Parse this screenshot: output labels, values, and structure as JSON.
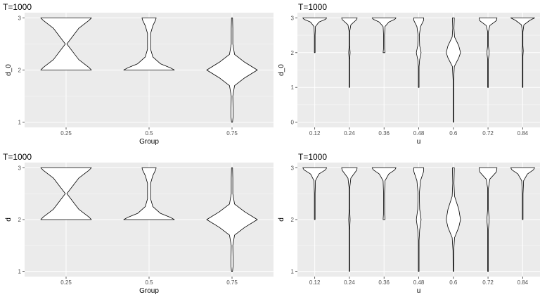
{
  "colors": {
    "panel_background": "#ebebeb",
    "grid_major": "#ffffff",
    "violin_fill": "#ffffff",
    "violin_stroke": "#000000",
    "tick_text": "#4d4d4d"
  },
  "chart_data": [
    {
      "type": "violin",
      "title": "T=1000",
      "xlabel": "Group",
      "ylabel": "d_0",
      "categories": [
        "0.25",
        "0.5",
        "0.75"
      ],
      "ylim": [
        0.9,
        3.1
      ],
      "yticks": [
        1,
        2,
        3
      ],
      "grid": true,
      "violins": [
        {
          "x": "0.25",
          "ymin": 2.0,
          "ymax": 3.0,
          "widths": [
            [
              2.0,
              1.0
            ],
            [
              2.05,
              0.9
            ],
            [
              2.2,
              0.5
            ],
            [
              2.5,
              0.03
            ],
            [
              2.8,
              0.5
            ],
            [
              2.95,
              0.9
            ],
            [
              3.0,
              1.0
            ]
          ]
        },
        {
          "x": "0.5",
          "ymin": 2.0,
          "ymax": 3.0,
          "widths": [
            [
              2.0,
              1.0
            ],
            [
              2.04,
              0.85
            ],
            [
              2.12,
              0.45
            ],
            [
              2.25,
              0.15
            ],
            [
              2.4,
              0.06
            ],
            [
              2.7,
              0.06
            ],
            [
              2.85,
              0.15
            ],
            [
              2.95,
              0.25
            ],
            [
              3.0,
              0.28
            ]
          ]
        },
        {
          "x": "0.75",
          "ymin": 1.0,
          "ymax": 3.0,
          "widths": [
            [
              1.0,
              0.02
            ],
            [
              1.1,
              0.04
            ],
            [
              1.25,
              0.04
            ],
            [
              1.5,
              0.03
            ],
            [
              1.7,
              0.1
            ],
            [
              1.85,
              0.5
            ],
            [
              2.0,
              1.0
            ],
            [
              2.15,
              0.5
            ],
            [
              2.3,
              0.1
            ],
            [
              2.5,
              0.03
            ],
            [
              2.8,
              0.03
            ],
            [
              3.0,
              0.02
            ]
          ]
        }
      ]
    },
    {
      "type": "violin",
      "title": "T=1000",
      "xlabel": "u",
      "ylabel": "d_0",
      "categories": [
        "0.12",
        "0.24",
        "0.36",
        "0.48",
        "0.6",
        "0.72",
        "0.84"
      ],
      "ylim": [
        -0.15,
        3.15
      ],
      "yticks": [
        0,
        1,
        2,
        3
      ],
      "grid": true,
      "violins": [
        {
          "x": "0.12",
          "ymin": 2.0,
          "ymax": 3.0,
          "widths": [
            [
              2.0,
              0.03
            ],
            [
              2.5,
              0.03
            ],
            [
              2.75,
              0.06
            ],
            [
              2.88,
              0.35
            ],
            [
              2.96,
              0.9
            ],
            [
              3.0,
              1.0
            ]
          ]
        },
        {
          "x": "0.24",
          "ymin": 1.0,
          "ymax": 3.0,
          "widths": [
            [
              1.0,
              0.02
            ],
            [
              1.8,
              0.02
            ],
            [
              2.0,
              0.06
            ],
            [
              2.2,
              0.02
            ],
            [
              2.6,
              0.02
            ],
            [
              2.8,
              0.12
            ],
            [
              2.95,
              0.6
            ],
            [
              3.0,
              0.65
            ]
          ]
        },
        {
          "x": "0.36",
          "ymin": 2.0,
          "ymax": 3.0,
          "widths": [
            [
              2.0,
              0.08
            ],
            [
              2.1,
              0.05
            ],
            [
              2.5,
              0.04
            ],
            [
              2.75,
              0.08
            ],
            [
              2.88,
              0.4
            ],
            [
              2.96,
              0.9
            ],
            [
              3.0,
              1.0
            ]
          ]
        },
        {
          "x": "0.48",
          "ymin": 1.0,
          "ymax": 3.0,
          "widths": [
            [
              1.0,
              0.03
            ],
            [
              1.6,
              0.03
            ],
            [
              1.8,
              0.08
            ],
            [
              2.0,
              0.2
            ],
            [
              2.2,
              0.08
            ],
            [
              2.5,
              0.05
            ],
            [
              2.75,
              0.15
            ],
            [
              2.92,
              0.4
            ],
            [
              3.0,
              0.42
            ]
          ]
        },
        {
          "x": "0.6",
          "ymin": 0.0,
          "ymax": 3.0,
          "widths": [
            [
              0.0,
              0.02
            ],
            [
              1.2,
              0.02
            ],
            [
              1.6,
              0.08
            ],
            [
              1.85,
              0.45
            ],
            [
              2.0,
              0.6
            ],
            [
              2.2,
              0.45
            ],
            [
              2.45,
              0.1
            ],
            [
              2.7,
              0.05
            ],
            [
              3.0,
              0.08
            ]
          ]
        },
        {
          "x": "0.72",
          "ymin": 1.0,
          "ymax": 3.0,
          "widths": [
            [
              1.0,
              0.03
            ],
            [
              1.8,
              0.03
            ],
            [
              1.95,
              0.08
            ],
            [
              2.05,
              0.08
            ],
            [
              2.2,
              0.03
            ],
            [
              2.6,
              0.03
            ],
            [
              2.78,
              0.15
            ],
            [
              2.92,
              0.7
            ],
            [
              3.0,
              0.75
            ]
          ]
        },
        {
          "x": "0.84",
          "ymin": 1.0,
          "ymax": 3.0,
          "widths": [
            [
              1.0,
              0.02
            ],
            [
              1.9,
              0.02
            ],
            [
              2.05,
              0.05
            ],
            [
              2.2,
              0.02
            ],
            [
              2.6,
              0.02
            ],
            [
              2.8,
              0.1
            ],
            [
              2.93,
              0.6
            ],
            [
              3.0,
              1.0
            ]
          ]
        }
      ]
    },
    {
      "type": "violin",
      "title": "T=1000",
      "xlabel": "Group",
      "ylabel": "d",
      "categories": [
        "0.25",
        "0.5",
        "0.75"
      ],
      "ylim": [
        0.9,
        3.1
      ],
      "yticks": [
        1,
        2,
        3
      ],
      "grid": true,
      "violins": [
        {
          "x": "0.25",
          "ymin": 2.0,
          "ymax": 3.0,
          "widths": [
            [
              2.0,
              1.0
            ],
            [
              2.05,
              0.9
            ],
            [
              2.2,
              0.5
            ],
            [
              2.5,
              0.03
            ],
            [
              2.8,
              0.5
            ],
            [
              2.95,
              0.9
            ],
            [
              3.0,
              1.0
            ]
          ]
        },
        {
          "x": "0.5",
          "ymin": 2.0,
          "ymax": 3.0,
          "widths": [
            [
              2.0,
              1.0
            ],
            [
              2.04,
              0.85
            ],
            [
              2.12,
              0.45
            ],
            [
              2.25,
              0.15
            ],
            [
              2.4,
              0.06
            ],
            [
              2.7,
              0.06
            ],
            [
              2.85,
              0.15
            ],
            [
              2.95,
              0.25
            ],
            [
              3.0,
              0.28
            ]
          ]
        },
        {
          "x": "0.75",
          "ymin": 1.0,
          "ymax": 3.0,
          "widths": [
            [
              1.0,
              0.02
            ],
            [
              1.1,
              0.04
            ],
            [
              1.25,
              0.04
            ],
            [
              1.5,
              0.03
            ],
            [
              1.7,
              0.1
            ],
            [
              1.85,
              0.5
            ],
            [
              2.0,
              1.0
            ],
            [
              2.15,
              0.5
            ],
            [
              2.3,
              0.1
            ],
            [
              2.5,
              0.03
            ],
            [
              2.8,
              0.03
            ],
            [
              3.0,
              0.02
            ]
          ]
        }
      ]
    },
    {
      "type": "violin",
      "title": "T=1000",
      "xlabel": "u",
      "ylabel": "d",
      "categories": [
        "0.12",
        "0.24",
        "0.36",
        "0.48",
        "0.6",
        "0.72",
        "0.84"
      ],
      "ylim": [
        0.9,
        3.1
      ],
      "yticks": [
        1,
        2,
        3
      ],
      "grid": true,
      "violins": [
        {
          "x": "0.12",
          "ymin": 2.0,
          "ymax": 3.0,
          "widths": [
            [
              2.0,
              0.03
            ],
            [
              2.5,
              0.03
            ],
            [
              2.75,
              0.06
            ],
            [
              2.88,
              0.35
            ],
            [
              2.96,
              0.9
            ],
            [
              3.0,
              1.0
            ]
          ]
        },
        {
          "x": "0.24",
          "ymin": 1.0,
          "ymax": 3.0,
          "widths": [
            [
              1.0,
              0.02
            ],
            [
              1.8,
              0.02
            ],
            [
              2.0,
              0.06
            ],
            [
              2.2,
              0.02
            ],
            [
              2.6,
              0.02
            ],
            [
              2.8,
              0.12
            ],
            [
              2.95,
              0.6
            ],
            [
              3.0,
              0.65
            ]
          ]
        },
        {
          "x": "0.36",
          "ymin": 2.0,
          "ymax": 3.0,
          "widths": [
            [
              2.0,
              0.08
            ],
            [
              2.1,
              0.05
            ],
            [
              2.5,
              0.04
            ],
            [
              2.75,
              0.08
            ],
            [
              2.88,
              0.4
            ],
            [
              2.96,
              0.9
            ],
            [
              3.0,
              1.0
            ]
          ]
        },
        {
          "x": "0.48",
          "ymin": 1.0,
          "ymax": 3.0,
          "widths": [
            [
              1.0,
              0.03
            ],
            [
              1.6,
              0.03
            ],
            [
              1.8,
              0.08
            ],
            [
              2.0,
              0.2
            ],
            [
              2.2,
              0.08
            ],
            [
              2.5,
              0.05
            ],
            [
              2.75,
              0.15
            ],
            [
              2.92,
              0.4
            ],
            [
              3.0,
              0.42
            ]
          ]
        },
        {
          "x": "0.6",
          "ymin": 1.0,
          "ymax": 3.0,
          "widths": [
            [
              1.0,
              0.02
            ],
            [
              1.4,
              0.03
            ],
            [
              1.65,
              0.1
            ],
            [
              1.85,
              0.45
            ],
            [
              2.0,
              0.6
            ],
            [
              2.2,
              0.45
            ],
            [
              2.45,
              0.1
            ],
            [
              2.7,
              0.05
            ],
            [
              3.0,
              0.08
            ]
          ]
        },
        {
          "x": "0.72",
          "ymin": 1.0,
          "ymax": 3.0,
          "widths": [
            [
              1.0,
              0.03
            ],
            [
              1.8,
              0.03
            ],
            [
              1.95,
              0.08
            ],
            [
              2.05,
              0.08
            ],
            [
              2.2,
              0.03
            ],
            [
              2.6,
              0.03
            ],
            [
              2.78,
              0.15
            ],
            [
              2.92,
              0.7
            ],
            [
              3.0,
              0.75
            ]
          ]
        },
        {
          "x": "0.84",
          "ymin": 2.0,
          "ymax": 3.0,
          "widths": [
            [
              2.0,
              0.03
            ],
            [
              2.5,
              0.03
            ],
            [
              2.75,
              0.08
            ],
            [
              2.88,
              0.4
            ],
            [
              2.96,
              0.9
            ],
            [
              3.0,
              1.0
            ]
          ]
        }
      ]
    }
  ]
}
